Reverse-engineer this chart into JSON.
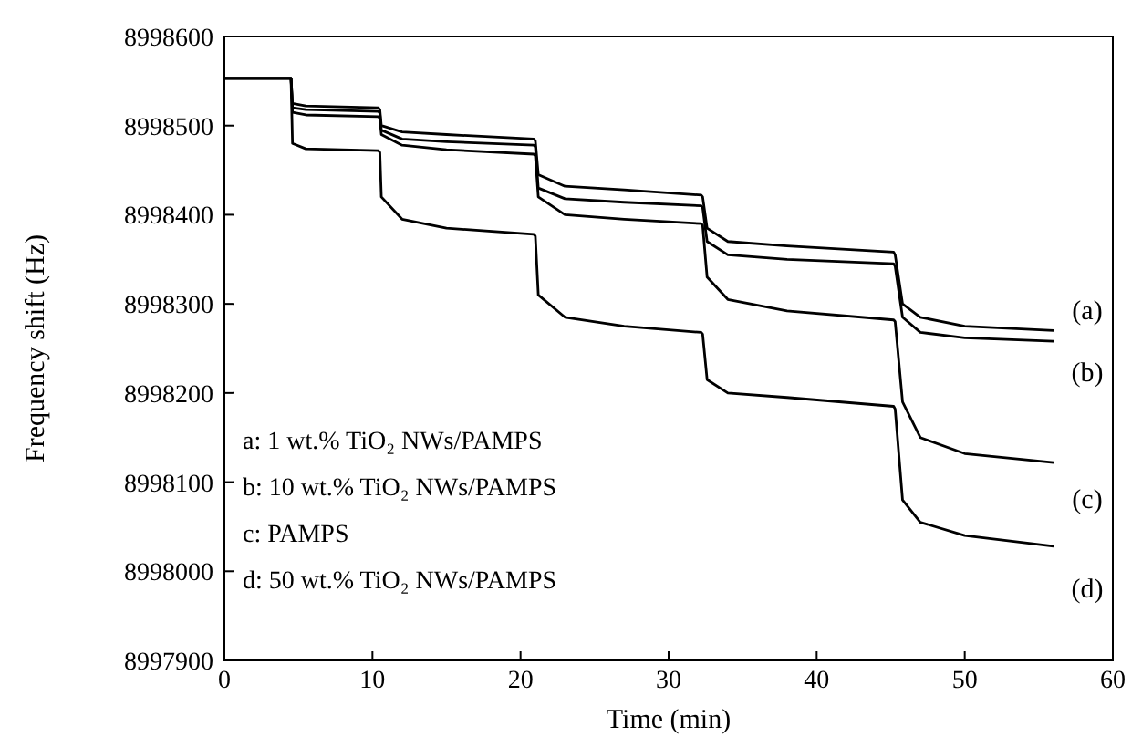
{
  "chart_data": {
    "type": "line",
    "xlabel": "Time (min)",
    "ylabel": "Frequency shift (Hz)",
    "x": [
      0,
      4.5,
      4.6,
      5.5,
      10.4,
      10.5,
      10.6,
      12,
      15,
      20.9,
      21,
      21.2,
      23,
      27,
      32.2,
      32.3,
      32.6,
      34,
      38,
      45.2,
      45.3,
      45.8,
      47,
      50,
      56
    ],
    "series": [
      {
        "name": "(a)",
        "color": "#000000",
        "values": [
          8998553,
          8998553,
          8998525,
          8998522,
          8998520,
          8998518,
          8998500,
          8998493,
          8998490,
          8998485,
          8998483,
          8998445,
          8998432,
          8998428,
          8998422,
          8998420,
          8998385,
          8998370,
          8998365,
          8998358,
          8998355,
          8998300,
          8998285,
          8998275,
          8998270
        ]
      },
      {
        "name": "(b)",
        "color": "#000000",
        "values": [
          8998553,
          8998553,
          8998520,
          8998518,
          8998516,
          8998514,
          8998495,
          8998485,
          8998482,
          8998478,
          8998476,
          8998430,
          8998418,
          8998414,
          8998410,
          8998408,
          8998370,
          8998355,
          8998350,
          8998345,
          8998342,
          8998285,
          8998268,
          8998262,
          8998258
        ]
      },
      {
        "name": "(c)",
        "color": "#000000",
        "values": [
          8998553,
          8998553,
          8998515,
          8998512,
          8998510,
          8998508,
          8998490,
          8998478,
          8998473,
          8998468,
          8998466,
          8998420,
          8998400,
          8998395,
          8998390,
          8998388,
          8998330,
          8998305,
          8998292,
          8998282,
          8998280,
          8998190,
          8998150,
          8998132,
          8998122
        ]
      },
      {
        "name": "(d)",
        "color": "#000000",
        "values": [
          8998553,
          8998553,
          8998480,
          8998474,
          8998472,
          8998470,
          8998420,
          8998395,
          8998385,
          8998378,
          8998376,
          8998310,
          8998285,
          8998275,
          8998268,
          8998266,
          8998215,
          8998200,
          8998195,
          8998185,
          8998182,
          8998080,
          8998055,
          8998040,
          8998028
        ]
      }
    ],
    "xlim": [
      0,
      60
    ],
    "xticks": [
      0,
      10,
      20,
      30,
      40,
      50,
      60
    ],
    "ylim": [
      8997900,
      8998600
    ],
    "yticks": [
      8997900,
      8998000,
      8998100,
      8998200,
      8998300,
      8998400,
      8998500,
      8998600
    ],
    "grid": false,
    "marker": "none",
    "line_style": "solid",
    "annotations": [
      "a: 1 wt.% TiO₂ NWs/PAMPS",
      "b: 10 wt.% TiO₂ NWs/PAMPS",
      "c: PAMPS",
      "d: 50 wt.% TiO₂ NWs/PAMPS"
    ]
  }
}
